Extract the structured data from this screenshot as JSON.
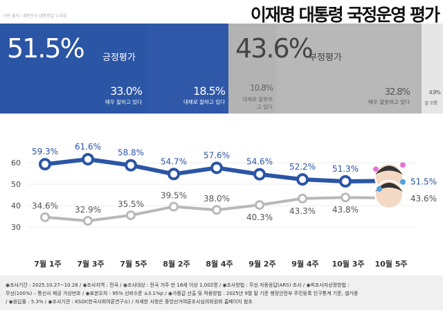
{
  "header": {
    "credit": "사진 출처: 대한민국 대통령실 누리집",
    "title": "이재명 대통령 국정운영 평가"
  },
  "summary": {
    "positive": {
      "value": "51.5%",
      "label": "긍정평가",
      "color": "#2b55a5"
    },
    "negative": {
      "value": "43.6%",
      "label": "부정평가",
      "color": "#b3b3b3"
    },
    "breakdown": [
      {
        "value": "33.0%",
        "label": "매우 잘하고 있다"
      },
      {
        "value": "18.5%",
        "label": "대체로 잘하고 있다"
      },
      {
        "value": "10.8%",
        "label": "대체로 잘못하고 있다"
      },
      {
        "value": "32.8%",
        "label": "매우 잘못하고 있다"
      },
      {
        "value": "4.9%",
        "label": "잘 모름"
      }
    ]
  },
  "chart_data": {
    "type": "line",
    "categories": [
      "7월 1주",
      "7월 3주",
      "7월 5주",
      "8월 2주",
      "8월 4주",
      "9월 2주",
      "9월 4주",
      "10월 3주",
      "10월 5주"
    ],
    "yticks": [
      30,
      40,
      50,
      60
    ],
    "ylim": [
      25,
      68
    ],
    "grid": true,
    "series": [
      {
        "name": "긍정평가",
        "color": "#2b55a5",
        "values": [
          59.3,
          61.6,
          58.8,
          54.7,
          57.6,
          54.6,
          52.2,
          51.3,
          51.5
        ],
        "labels": [
          "59.3%",
          "61.6%",
          "58.8%",
          "54.7%",
          "57.6%",
          "54.6%",
          "52.2%",
          "51.3%",
          "51.5%"
        ]
      },
      {
        "name": "부정평가",
        "color": "#b8b8b8",
        "values": [
          34.6,
          32.9,
          35.5,
          39.5,
          38.0,
          40.3,
          43.3,
          43.8,
          43.6
        ],
        "labels": [
          "34.6%",
          "32.9%",
          "35.5%",
          "39.5%",
          "38.0%",
          "40.3%",
          "43.3%",
          "43.8%",
          "43.6%"
        ]
      }
    ]
  },
  "footer": {
    "lines": [
      "◉조사기간 : 2025.10.27~10.28 / ◉조사지역 : 전국 / ◉조사대상 : 전국 거주 만 18세 이상 1,002명 / ◉조사방법 : 무선 자동응답(ARS) 조사 / ◉피조사자선정방법 :",
      "무선(100%) – 통신사 제공 가상번호 / ◉표본오차 : 95% 신뢰수준 ±3.1%p / ◉가중값 산출 및 적용방법 : 2025년 9월 말 기준 행정안전부 주민등록 인구통계 기준, 셀가중",
      "/ ◉응답률 : 5.3% / ◉조사기관 : KSOI(한국사회여론연구소) / 자세한 사항은 중앙선거여론조사심의위원회 홈페이지 참조"
    ]
  }
}
